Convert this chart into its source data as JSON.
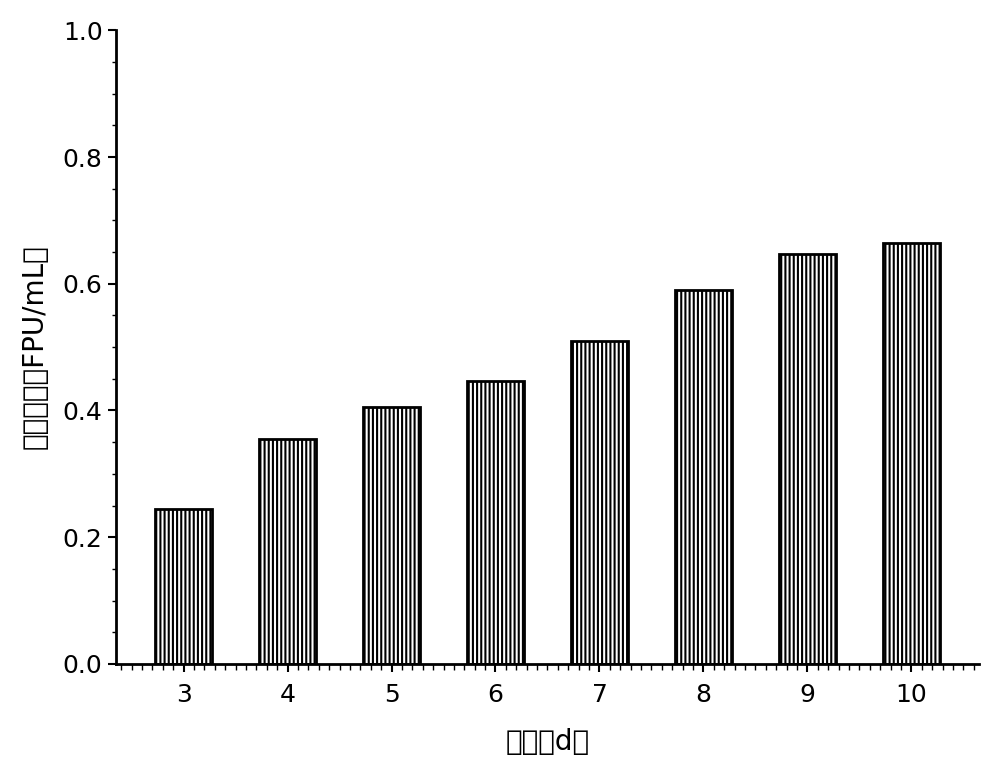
{
  "categories": [
    3,
    4,
    5,
    6,
    7,
    8,
    9,
    10
  ],
  "values": [
    0.245,
    0.355,
    0.405,
    0.447,
    0.51,
    0.59,
    0.647,
    0.665
  ],
  "bar_color": "#ffffff",
  "bar_edgecolor": "#000000",
  "bar_linewidth": 2.0,
  "hatch": "||||",
  "xlabel": "时间（d）",
  "ylabel": "滤纸酶活（FPU/mL）",
  "ylim": [
    0.0,
    1.0
  ],
  "yticks": [
    0.0,
    0.2,
    0.4,
    0.6,
    0.8,
    1.0
  ],
  "xlabel_fontsize": 20,
  "ylabel_fontsize": 20,
  "tick_fontsize": 18,
  "bar_width": 0.55,
  "figsize": [
    10.0,
    7.77
  ],
  "dpi": 100,
  "background_color": "#ffffff",
  "spine_linewidth": 2.0
}
